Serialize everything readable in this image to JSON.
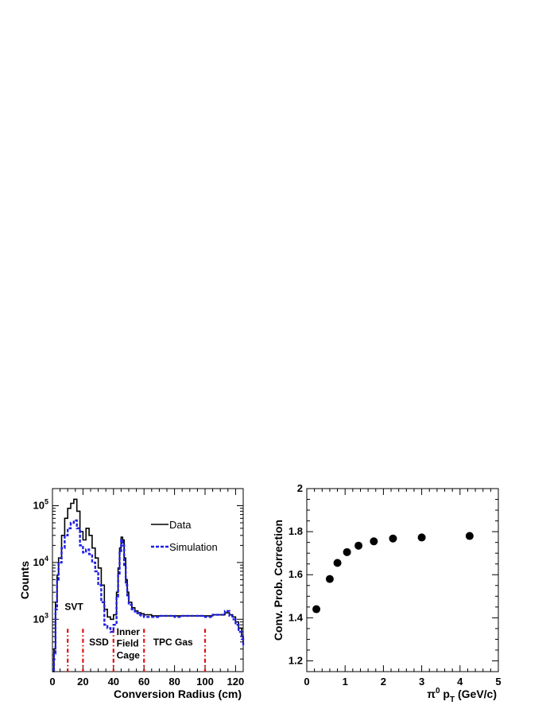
{
  "colors": {
    "data": "#000000",
    "simulation": "#1f1fe6",
    "markers": "#e01010",
    "points": "#000000"
  },
  "chart_data": [
    {
      "type": "line",
      "xlabel": "Conversion Radius (cm)",
      "ylabel": "Counts",
      "xlim": [
        0,
        125
      ],
      "ylim": [
        120,
        200000
      ],
      "yscale": "log",
      "x_ticks": [
        0,
        20,
        40,
        60,
        80,
        100,
        120
      ],
      "x_tick_labels": [
        "0",
        "20",
        "40",
        "60",
        "80",
        "100",
        "120"
      ],
      "y_ticks": [
        1000,
        10000,
        100000
      ],
      "y_tick_labels": [
        {
          "base": "10",
          "exp": "3"
        },
        {
          "base": "10",
          "exp": "4"
        },
        {
          "base": "10",
          "exp": "5"
        }
      ],
      "legend_position": "top-right",
      "x": [
        0,
        1,
        2,
        3,
        4,
        6,
        8,
        10,
        12,
        14,
        16,
        18,
        20,
        22,
        24,
        26,
        28,
        30,
        32,
        34,
        36,
        38,
        40,
        42,
        43,
        44,
        45,
        46,
        47,
        48,
        49,
        50,
        52,
        54,
        56,
        58,
        60,
        65,
        70,
        75,
        80,
        85,
        90,
        95,
        100,
        105,
        110,
        113,
        116,
        118,
        120,
        122,
        124,
        125
      ],
      "series": [
        {
          "name": "Data",
          "style": "solid",
          "values": [
            120,
            300,
            2000,
            6000,
            12000,
            30000,
            60000,
            90000,
            110000,
            130000,
            80000,
            35000,
            25000,
            40000,
            30000,
            18000,
            12000,
            8000,
            4000,
            1500,
            1100,
            1000,
            1200,
            3000,
            8000,
            18000,
            28000,
            25000,
            12000,
            5000,
            3000,
            2000,
            1600,
            1400,
            1300,
            1250,
            1200,
            1150,
            1150,
            1150,
            1150,
            1150,
            1150,
            1150,
            1150,
            1200,
            1200,
            1300,
            1200,
            1100,
            900,
            700,
            500,
            400
          ]
        },
        {
          "name": "Simulation",
          "style": "dashed",
          "values": [
            130,
            250,
            1500,
            5000,
            10000,
            18000,
            30000,
            40000,
            50000,
            55000,
            40000,
            20000,
            15000,
            17000,
            14000,
            10000,
            7000,
            4000,
            2000,
            800,
            700,
            600,
            800,
            2500,
            6000,
            15000,
            25000,
            20000,
            9000,
            4000,
            2500,
            1800,
            1500,
            1300,
            1200,
            1150,
            1100,
            1100,
            1150,
            1150,
            1100,
            1150,
            1150,
            1150,
            1100,
            1200,
            1200,
            1400,
            1150,
            1000,
            800,
            600,
            450,
            350
          ]
        }
      ],
      "markers": [
        10,
        20,
        40,
        60,
        100
      ],
      "annotations": [
        {
          "text": "SVT",
          "x": 8,
          "y": 1450
        },
        {
          "text": "SSD",
          "x": 24,
          "y": 350
        },
        {
          "text": "Inner",
          "x": 42,
          "y": 530
        },
        {
          "text": "Field",
          "x": 42,
          "y": 330
        },
        {
          "text": "Cage",
          "x": 42,
          "y": 205
        },
        {
          "text": "TPC Gas",
          "x": 66,
          "y": 350
        }
      ]
    },
    {
      "type": "scatter",
      "xlabel_main": "π",
      "xlabel_sup": "0",
      "xlabel_mid": " p",
      "xlabel_sub": "T",
      "xlabel_tail": " (GeV/c)",
      "ylabel": "Conv. Prob. Correction",
      "xlim": [
        0,
        5
      ],
      "ylim": [
        1.15,
        2.0
      ],
      "x_ticks": [
        0,
        1,
        2,
        3,
        4,
        5
      ],
      "x_tick_labels": [
        "0",
        "1",
        "2",
        "3",
        "4",
        "5"
      ],
      "y_ticks": [
        1.2,
        1.4,
        1.6,
        1.8,
        2.0
      ],
      "y_tick_labels": [
        "1.2",
        "1.4",
        "1.6",
        "1.8",
        "2"
      ],
      "x": [
        0.25,
        0.6,
        0.8,
        1.05,
        1.35,
        1.75,
        2.25,
        3.0,
        4.25
      ],
      "y": [
        1.44,
        1.58,
        1.655,
        1.705,
        1.735,
        1.755,
        1.768,
        1.773,
        1.78
      ]
    }
  ]
}
